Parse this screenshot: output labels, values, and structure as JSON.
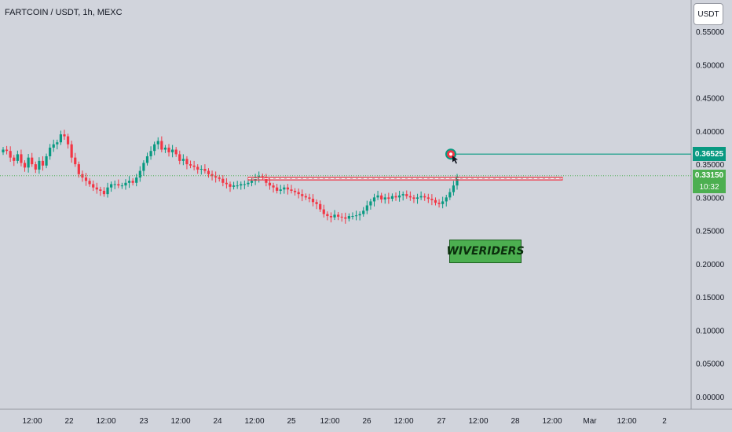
{
  "header": {
    "title": "FARTCOIN / USDT, 1h, MEXC",
    "currency_button": "USDT"
  },
  "colors": {
    "background": "#d1d4dc",
    "up": "#089981",
    "down": "#f23645",
    "target_line": "#089981",
    "dotted_price_line": "#4caf50",
    "zone": "#f23645"
  },
  "watermark": "WIVERIDERS",
  "price_tags": {
    "target": "0.36525",
    "current": "0.33150",
    "countdown": "10:32"
  },
  "chart_data": {
    "type": "candlestick",
    "title": "FARTCOIN / USDT, 1h, MEXC",
    "ylim": [
      0.0,
      0.575
    ],
    "y_ticks": [
      "0.00000",
      "0.05000",
      "0.10000",
      "0.15000",
      "0.20000",
      "0.25000",
      "0.30000",
      "0.35000",
      "0.40000",
      "0.45000",
      "0.50000",
      "0.55000"
    ],
    "x_ticks": [
      "12:00",
      "22",
      "12:00",
      "23",
      "12:00",
      "24",
      "12:00",
      "25",
      "12:00",
      "26",
      "12:00",
      "27",
      "12:00",
      "28",
      "12:00",
      "Mar",
      "12:00",
      "2"
    ],
    "grid": false,
    "close_series": [
      0.372,
      0.37,
      0.36,
      0.355,
      0.365,
      0.352,
      0.345,
      0.36,
      0.35,
      0.342,
      0.355,
      0.348,
      0.362,
      0.375,
      0.38,
      0.383,
      0.395,
      0.392,
      0.38,
      0.36,
      0.35,
      0.335,
      0.33,
      0.325,
      0.32,
      0.315,
      0.312,
      0.31,
      0.305,
      0.315,
      0.32,
      0.32,
      0.318,
      0.318,
      0.322,
      0.325,
      0.322,
      0.33,
      0.34,
      0.352,
      0.362,
      0.37,
      0.38,
      0.385,
      0.372,
      0.375,
      0.368,
      0.372,
      0.365,
      0.355,
      0.358,
      0.35,
      0.348,
      0.346,
      0.342,
      0.343,
      0.34,
      0.335,
      0.332,
      0.33,
      0.328,
      0.322,
      0.32,
      0.316,
      0.318,
      0.318,
      0.32,
      0.32,
      0.322,
      0.325,
      0.33,
      0.332,
      0.33,
      0.322,
      0.318,
      0.315,
      0.31,
      0.312,
      0.315,
      0.312,
      0.31,
      0.308,
      0.305,
      0.302,
      0.3,
      0.298,
      0.293,
      0.29,
      0.282,
      0.275,
      0.272,
      0.27,
      0.274,
      0.271,
      0.27,
      0.268,
      0.272,
      0.272,
      0.273,
      0.275,
      0.28,
      0.288,
      0.294,
      0.3,
      0.303,
      0.297,
      0.3,
      0.298,
      0.302,
      0.3,
      0.303,
      0.305,
      0.302,
      0.3,
      0.298,
      0.3,
      0.302,
      0.3,
      0.298,
      0.296,
      0.292,
      0.29,
      0.294,
      0.3,
      0.308,
      0.318,
      0.3315
    ],
    "target_price": 0.36525,
    "current_price": 0.3315,
    "zone": [
      0.3262,
      0.3305
    ]
  }
}
